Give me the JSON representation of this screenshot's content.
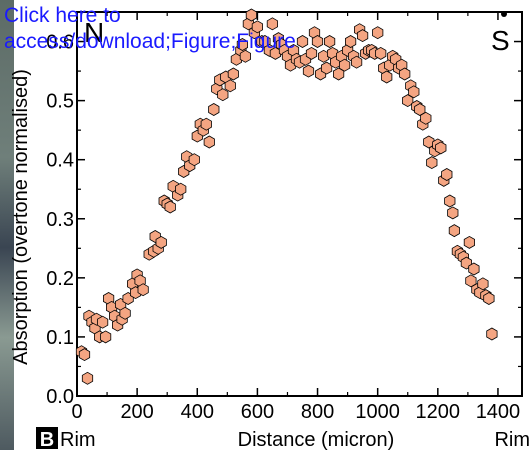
{
  "link": {
    "line1": "Click here to",
    "line2": "access/download;Figure;Figure"
  },
  "corner_labels": {
    "left": "N",
    "right": "S"
  },
  "panel_label": "B",
  "rim_left": "Rim",
  "rim_right": "Rim",
  "chart_data": {
    "type": "scatter",
    "title": "",
    "xlabel": "Distance (micron)",
    "ylabel": "Absorption (overtone normalised)",
    "xlim": [
      0,
      1480
    ],
    "ylim": [
      0,
      0.65
    ],
    "x_ticks": [
      0,
      200,
      400,
      600,
      800,
      1000,
      1200,
      1400
    ],
    "y_ticks": [
      0.0,
      0.1,
      0.2,
      0.3,
      0.4,
      0.5,
      0.6
    ],
    "y_tick_labels": [
      "0.0",
      "0.1",
      "0.2",
      "0.3",
      "0.4",
      "0.5",
      "0.6"
    ],
    "marker": "hexagon",
    "marker_fill": "#f4a582",
    "marker_edge": "#000000",
    "series": [
      {
        "points": [
          [
            15,
            0.075
          ],
          [
            25,
            0.07
          ],
          [
            35,
            0.03
          ],
          [
            40,
            0.135
          ],
          [
            50,
            0.125
          ],
          [
            60,
            0.115
          ],
          [
            65,
            0.13
          ],
          [
            75,
            0.1
          ],
          [
            85,
            0.125
          ],
          [
            95,
            0.1
          ],
          [
            105,
            0.165
          ],
          [
            115,
            0.15
          ],
          [
            125,
            0.135
          ],
          [
            135,
            0.12
          ],
          [
            145,
            0.155
          ],
          [
            150,
            0.13
          ],
          [
            160,
            0.14
          ],
          [
            170,
            0.165
          ],
          [
            185,
            0.19
          ],
          [
            195,
            0.175
          ],
          [
            200,
            0.205
          ],
          [
            210,
            0.195
          ],
          [
            220,
            0.18
          ],
          [
            240,
            0.24
          ],
          [
            255,
            0.245
          ],
          [
            260,
            0.27
          ],
          [
            270,
            0.25
          ],
          [
            280,
            0.26
          ],
          [
            290,
            0.33
          ],
          [
            300,
            0.325
          ],
          [
            310,
            0.32
          ],
          [
            320,
            0.355
          ],
          [
            335,
            0.34
          ],
          [
            345,
            0.35
          ],
          [
            355,
            0.38
          ],
          [
            365,
            0.405
          ],
          [
            375,
            0.39
          ],
          [
            390,
            0.4
          ],
          [
            400,
            0.44
          ],
          [
            410,
            0.46
          ],
          [
            420,
            0.45
          ],
          [
            430,
            0.46
          ],
          [
            440,
            0.43
          ],
          [
            455,
            0.485
          ],
          [
            465,
            0.52
          ],
          [
            475,
            0.535
          ],
          [
            485,
            0.51
          ],
          [
            495,
            0.54
          ],
          [
            510,
            0.525
          ],
          [
            520,
            0.545
          ],
          [
            530,
            0.57
          ],
          [
            545,
            0.585
          ],
          [
            550,
            0.595
          ],
          [
            560,
            0.575
          ],
          [
            570,
            0.63
          ],
          [
            580,
            0.645
          ],
          [
            590,
            0.615
          ],
          [
            600,
            0.625
          ],
          [
            615,
            0.6
          ],
          [
            625,
            0.6
          ],
          [
            640,
            0.585
          ],
          [
            650,
            0.63
          ],
          [
            660,
            0.58
          ],
          [
            670,
            0.605
          ],
          [
            680,
            0.595
          ],
          [
            690,
            0.585
          ],
          [
            700,
            0.575
          ],
          [
            710,
            0.56
          ],
          [
            720,
            0.585
          ],
          [
            730,
            0.57
          ],
          [
            740,
            0.565
          ],
          [
            750,
            0.6
          ],
          [
            760,
            0.57
          ],
          [
            770,
            0.55
          ],
          [
            780,
            0.58
          ],
          [
            790,
            0.615
          ],
          [
            800,
            0.6
          ],
          [
            810,
            0.545
          ],
          [
            820,
            0.575
          ],
          [
            830,
            0.555
          ],
          [
            840,
            0.6
          ],
          [
            850,
            0.58
          ],
          [
            860,
            0.565
          ],
          [
            870,
            0.545
          ],
          [
            880,
            0.575
          ],
          [
            890,
            0.56
          ],
          [
            900,
            0.585
          ],
          [
            910,
            0.6
          ],
          [
            920,
            0.575
          ],
          [
            930,
            0.565
          ],
          [
            940,
            0.62
          ],
          [
            950,
            0.61
          ],
          [
            960,
            0.58
          ],
          [
            970,
            0.585
          ],
          [
            980,
            0.585
          ],
          [
            990,
            0.58
          ],
          [
            1000,
            0.615
          ],
          [
            1010,
            0.58
          ],
          [
            1020,
            0.555
          ],
          [
            1030,
            0.54
          ],
          [
            1040,
            0.56
          ],
          [
            1050,
            0.575
          ],
          [
            1060,
            0.57
          ],
          [
            1070,
            0.555
          ],
          [
            1080,
            0.56
          ],
          [
            1090,
            0.545
          ],
          [
            1100,
            0.5
          ],
          [
            1110,
            0.525
          ],
          [
            1120,
            0.515
          ],
          [
            1130,
            0.49
          ],
          [
            1140,
            0.485
          ],
          [
            1150,
            0.46
          ],
          [
            1160,
            0.47
          ],
          [
            1170,
            0.43
          ],
          [
            1180,
            0.395
          ],
          [
            1190,
            0.415
          ],
          [
            1200,
            0.425
          ],
          [
            1210,
            0.42
          ],
          [
            1220,
            0.365
          ],
          [
            1230,
            0.375
          ],
          [
            1240,
            0.33
          ],
          [
            1250,
            0.31
          ],
          [
            1255,
            0.28
          ],
          [
            1265,
            0.245
          ],
          [
            1275,
            0.24
          ],
          [
            1285,
            0.235
          ],
          [
            1295,
            0.225
          ],
          [
            1305,
            0.26
          ],
          [
            1310,
            0.195
          ],
          [
            1320,
            0.215
          ],
          [
            1330,
            0.18
          ],
          [
            1340,
            0.175
          ],
          [
            1350,
            0.19
          ],
          [
            1360,
            0.17
          ],
          [
            1370,
            0.165
          ],
          [
            1380,
            0.105
          ]
        ]
      }
    ]
  }
}
